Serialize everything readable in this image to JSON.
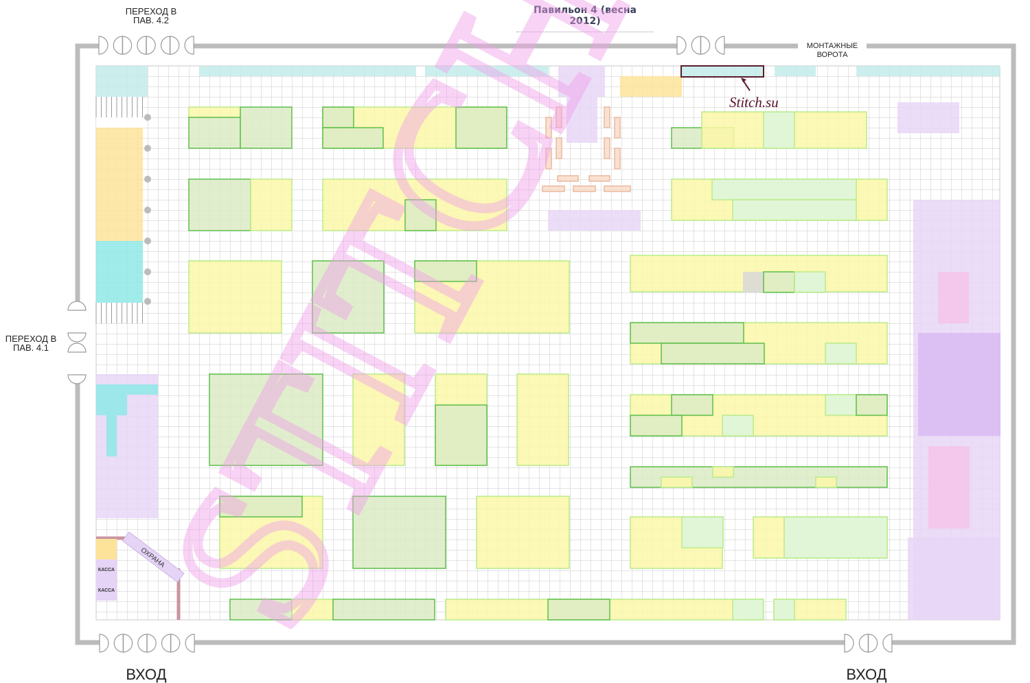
{
  "title": "Павильон 4 (весна 2012)",
  "labels": {
    "passage_42": "ПЕРЕХОД В\nПАВ. 4.2",
    "passage_41": "ПЕРЕХОД В\nПАВ. 4.1",
    "mounting_gate": "МОНТАЖНЫЕ\nВОРОТА",
    "entrance_left": "ВХОД",
    "entrance_right": "ВХОД",
    "security": "ОХРАНА",
    "cashier_1": "КАССА",
    "cashier_2": "КАССА",
    "stitch_pointer": "Stitch.su"
  },
  "watermark": "STITCH.SU",
  "colors": {
    "wall": "#bcbcbc",
    "grid": "#c8c8c8",
    "booth_yellow": "#fcf7a8",
    "booth_green": "#dcebc4",
    "booth_green_border": "#5cbf4a",
    "booth_light_green": "#dcf6dc",
    "cyan": "#c3eceb",
    "teal": "#8ee9e6",
    "orange": "#fde39a",
    "purple": "#e8d6f7",
    "purple_dark": "#d9baf2",
    "pink": "#f6c3ea",
    "highlight_box": "#5a1c2a",
    "watermark": "#f4a9ee"
  }
}
